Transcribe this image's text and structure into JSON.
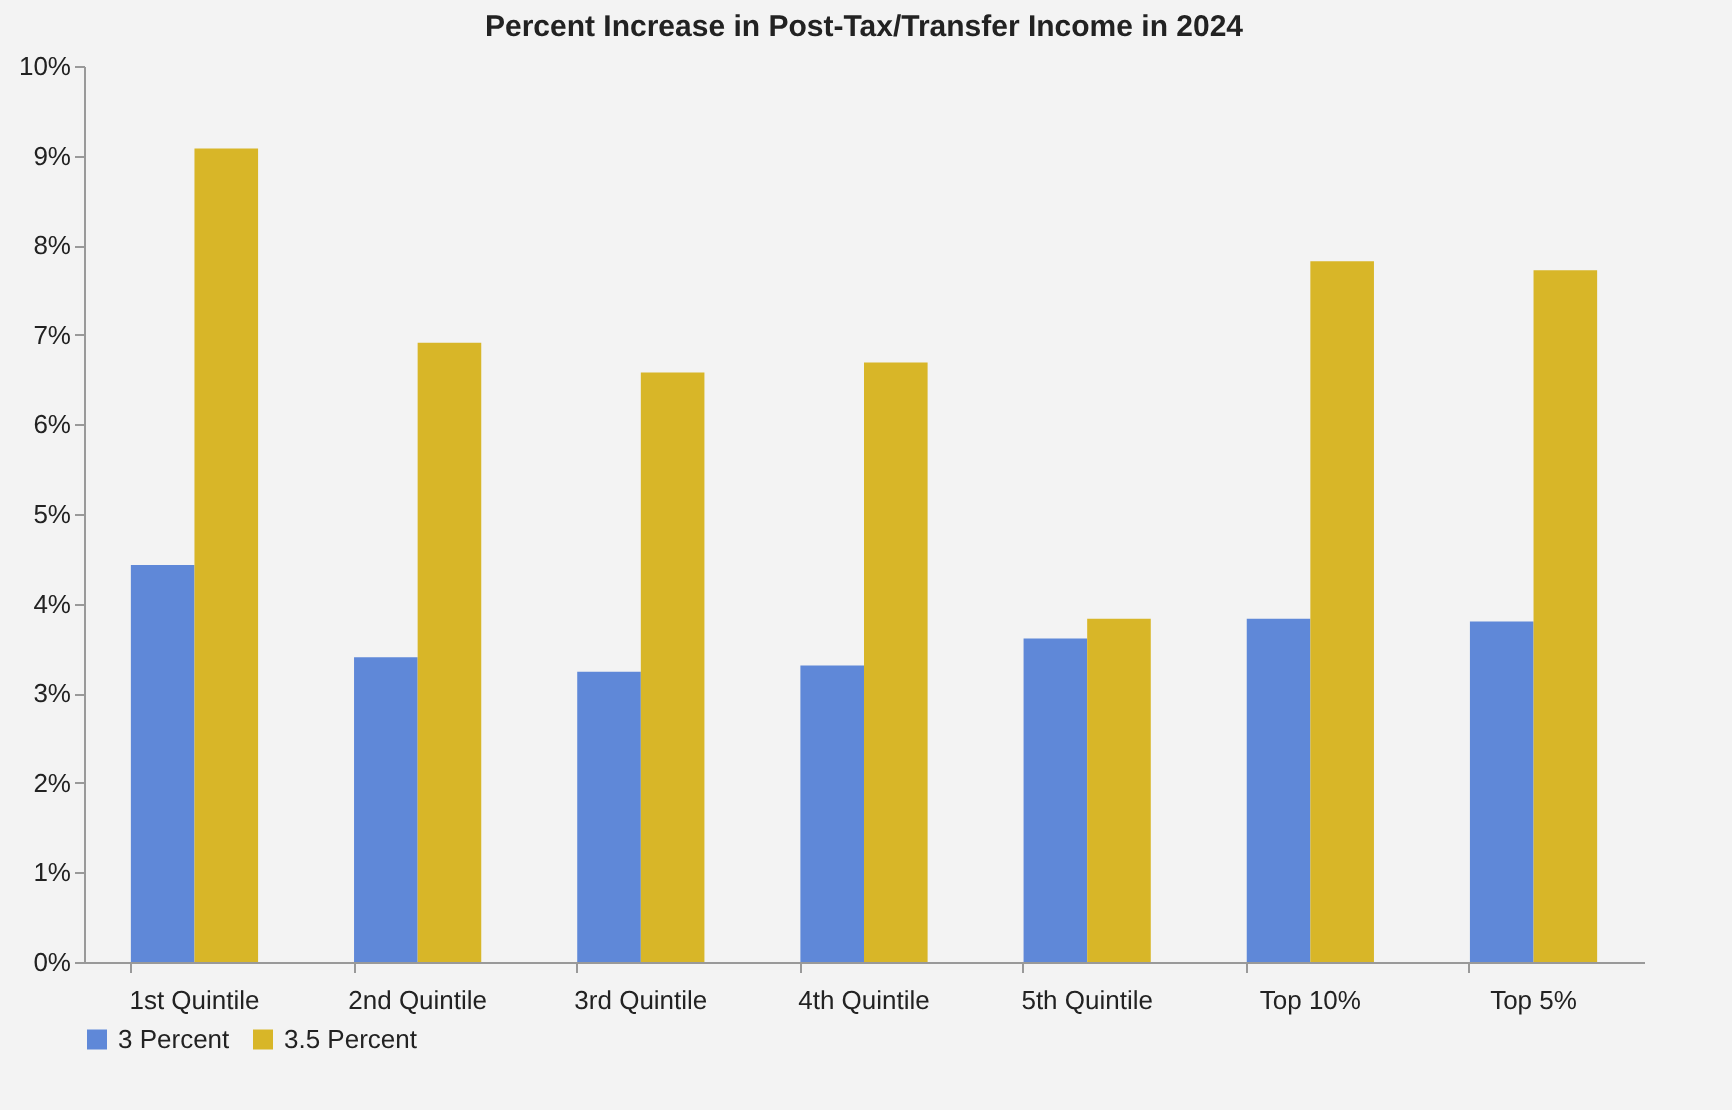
{
  "chart_data": {
    "type": "bar",
    "title": "Percent Increase in Post-Tax/Transfer Income in 2024",
    "categories": [
      "1st Quintile",
      "2nd Quintile",
      "3rd Quintile",
      "4th Quintile",
      "5th Quintile",
      "Top 10%",
      "Top 5%"
    ],
    "series": [
      {
        "name": "3 Percent",
        "color": "#5f88d8",
        "values": [
          4.43,
          3.4,
          3.24,
          3.31,
          3.61,
          3.83,
          3.8
        ]
      },
      {
        "name": "3.5 Percent",
        "color": "#d8b628",
        "values": [
          9.08,
          6.91,
          6.58,
          6.69,
          3.83,
          7.82,
          7.72
        ]
      }
    ],
    "ylim": [
      0,
      10
    ],
    "yticks": [
      {
        "value": 0,
        "label": "0%"
      },
      {
        "value": 1,
        "label": "1%"
      },
      {
        "value": 2,
        "label": "2%"
      },
      {
        "value": 3,
        "label": "3%"
      },
      {
        "value": 4,
        "label": "4%"
      },
      {
        "value": 5,
        "label": "5%"
      },
      {
        "value": 6,
        "label": "6%"
      },
      {
        "value": 7,
        "label": "7%"
      },
      {
        "value": 8,
        "label": "8%"
      },
      {
        "value": 9,
        "label": "9%"
      },
      {
        "value": 10,
        "label": "10%"
      }
    ],
    "grid": false,
    "legend": "bottom"
  }
}
